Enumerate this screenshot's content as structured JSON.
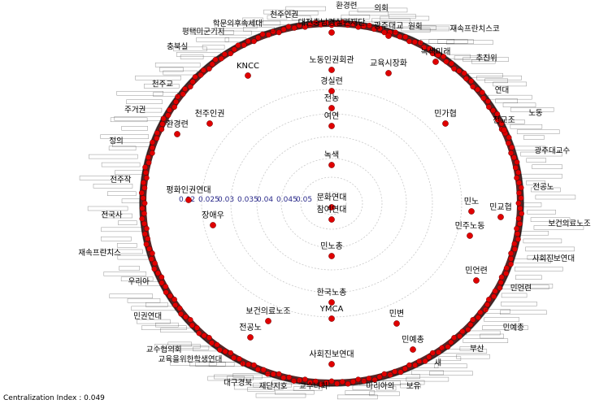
{
  "diagram": {
    "type": "centrality-radial-network",
    "node_color": "#e00000",
    "ring_color": "#c8c8c8",
    "scale_color": "#2a2a8a",
    "scale_labels": [
      "0.02",
      "0.025",
      "0.03",
      "0.035",
      "0.04",
      "0.045",
      "0.05"
    ],
    "inner_nodes": [
      {
        "label": "대전충남경실련재단"
      },
      {
        "label": "노동인권회관"
      },
      {
        "label": "경실련"
      },
      {
        "label": "전농"
      },
      {
        "label": "여연"
      },
      {
        "label": "녹색"
      },
      {
        "label": "문화연대"
      },
      {
        "label": "참여연대"
      },
      {
        "label": "민노총"
      },
      {
        "label": "한국노총"
      },
      {
        "label": "YMCA"
      },
      {
        "label": "사회진보연대"
      },
      {
        "label": "보건의료노조"
      },
      {
        "label": "전공노"
      },
      {
        "label": "장애우"
      },
      {
        "label": "민변"
      },
      {
        "label": "민예총"
      },
      {
        "label": "민주노동"
      },
      {
        "label": "KNCC"
      },
      {
        "label": "천주인권"
      },
      {
        "label": "환경련"
      },
      {
        "label": "민가협"
      },
      {
        "label": "교육시장화"
      },
      {
        "label": "녹색미래"
      },
      {
        "label": "민교협"
      },
      {
        "label": "민노"
      },
      {
        "label": "민언련"
      },
      {
        "label": "광주대교"
      },
      {
        "label": "평화인권연대"
      },
      {
        "label": "전교조"
      }
    ],
    "outer_labels": [
      "학문의후속세대",
      "평택미군기지",
      "충북실",
      "천주교",
      "주거권",
      "정의",
      "전주작",
      "전국사",
      "재속프란치스",
      "우리아",
      "민권연대",
      "교수협의회",
      "교육을위한학생연대",
      "대구경북",
      "재단지호",
      "교수녀회",
      "마리아의",
      "보유",
      "새",
      "부산",
      "민예총",
      "민언련",
      "사회진보연대",
      "보건의료노조",
      "전공노",
      "광주대교수",
      "노동",
      "연대",
      "추진위",
      "재속프란치스코",
      "원회",
      "의회",
      "환경련",
      "천주인권"
    ]
  },
  "footer": {
    "centralization": "Centralization Index : 0.049"
  }
}
